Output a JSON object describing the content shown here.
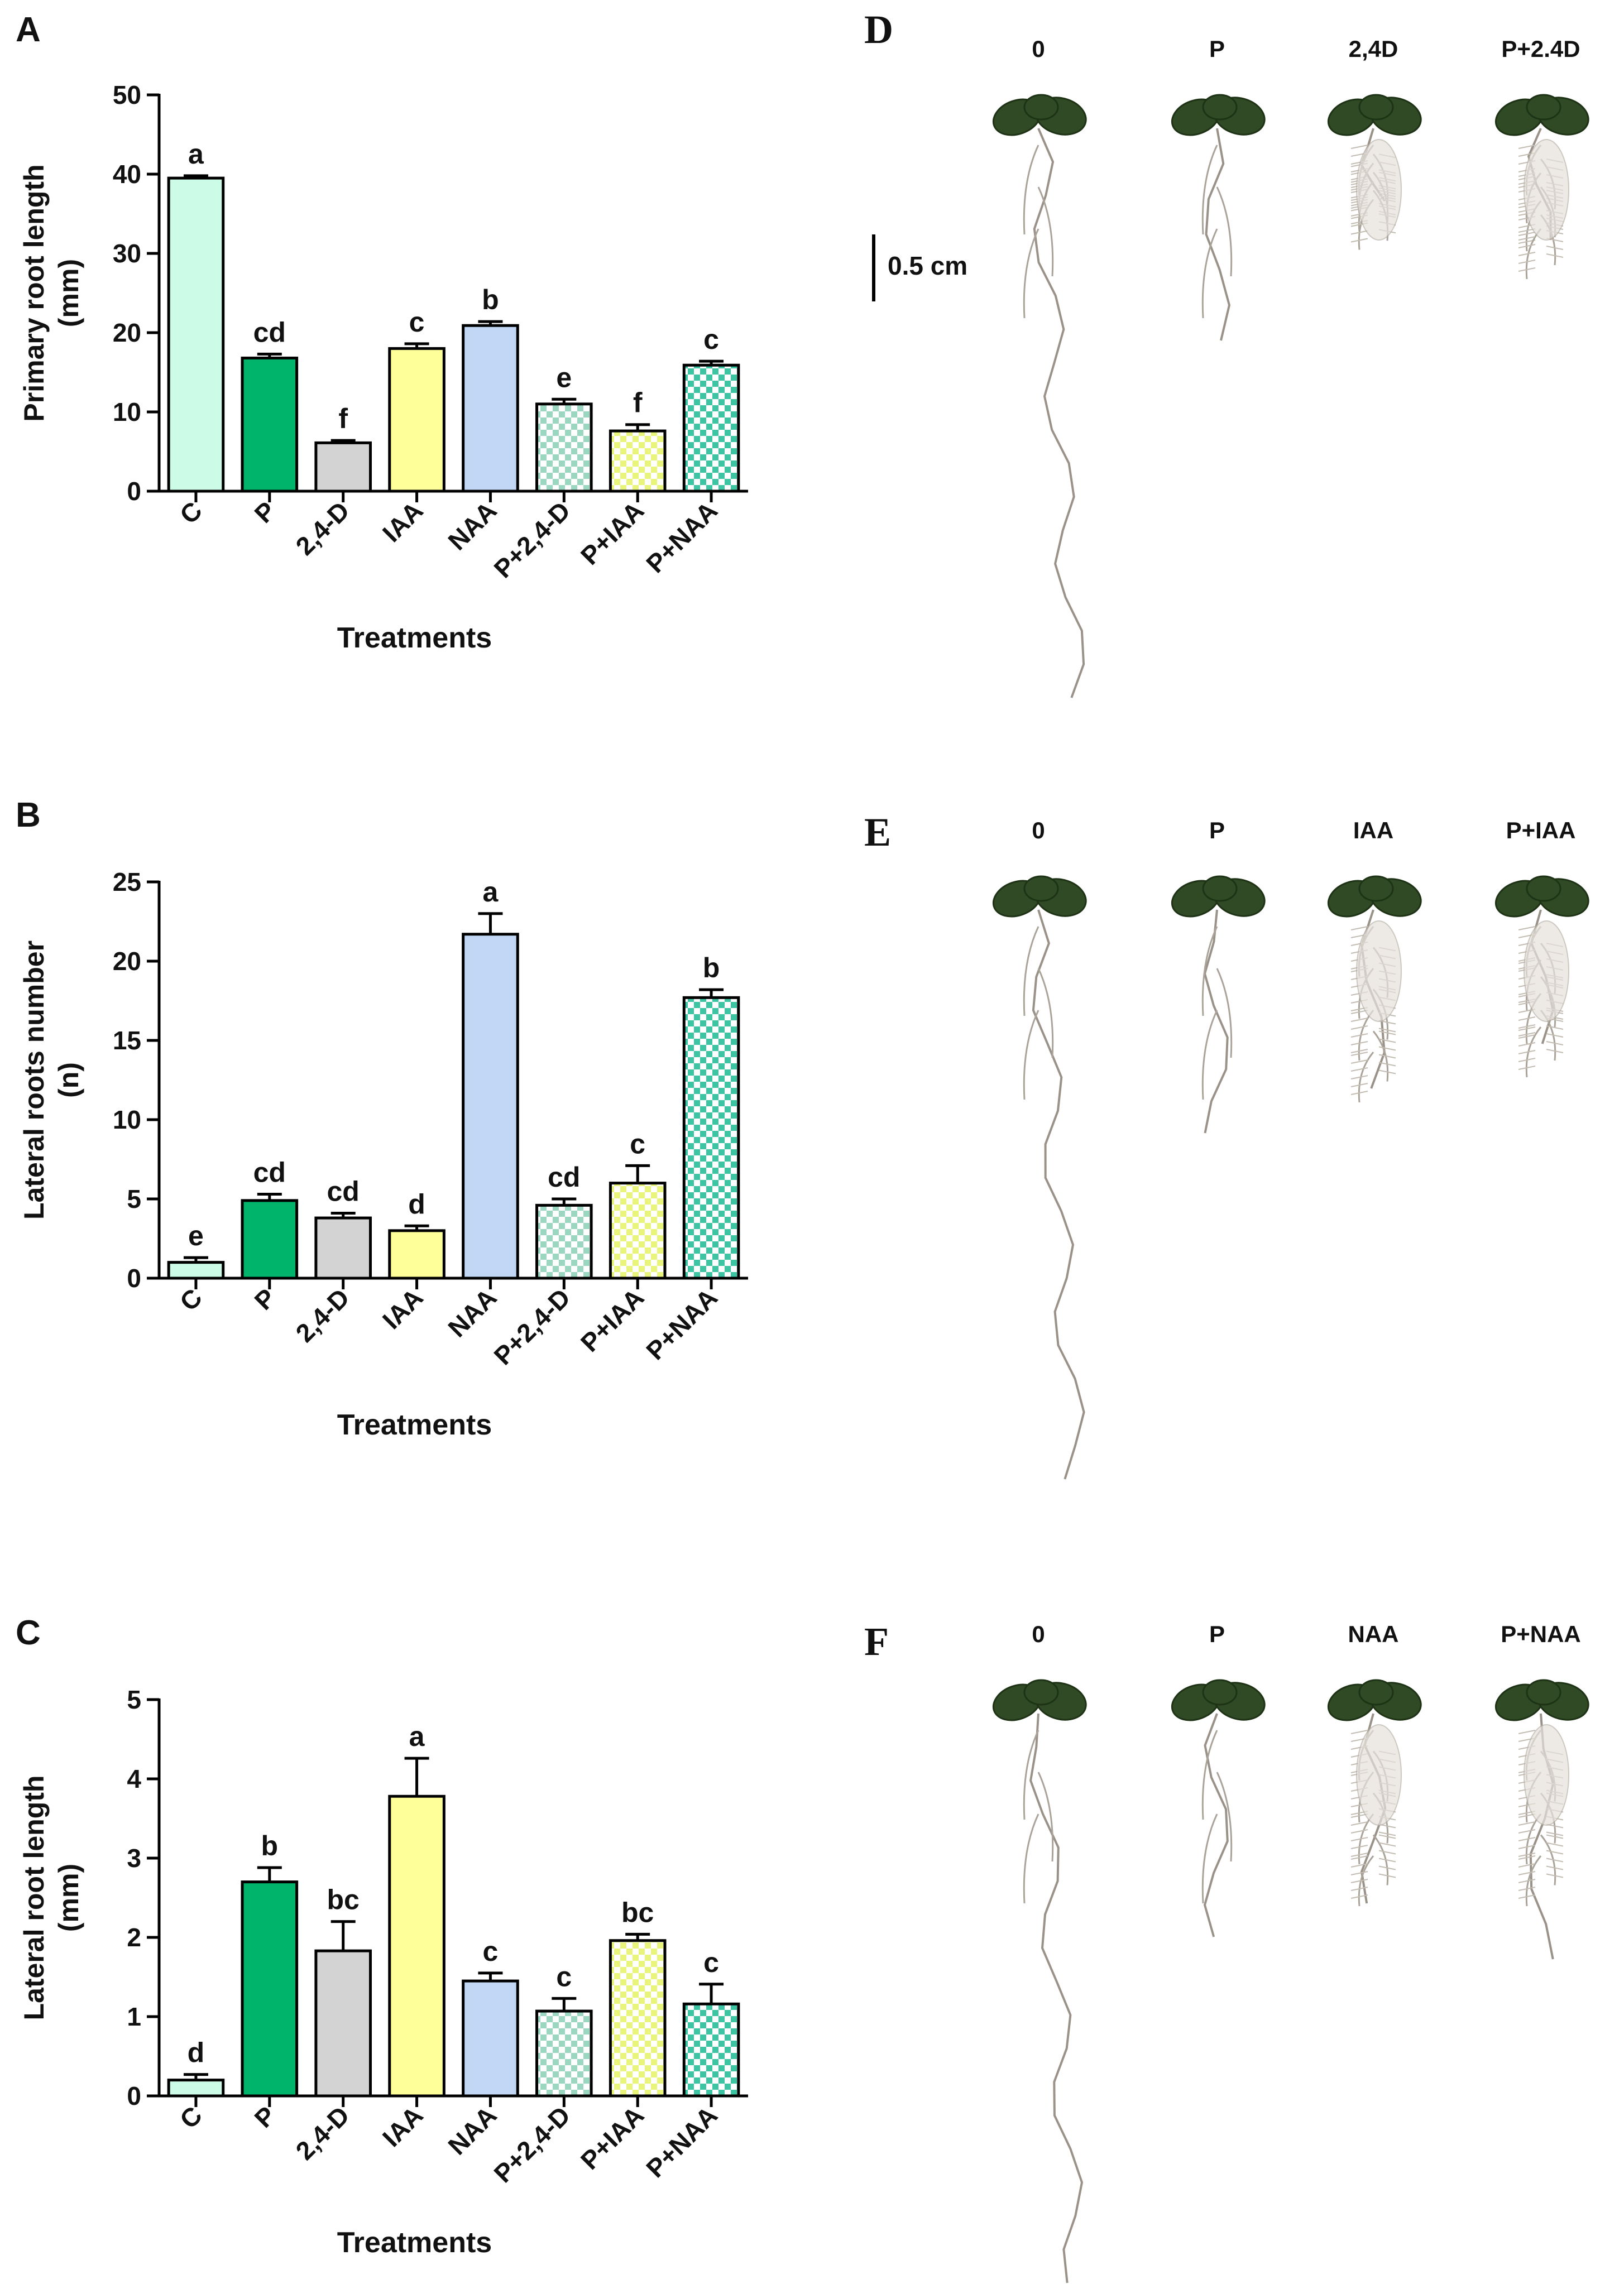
{
  "panels": [
    {
      "id": "A"
    },
    {
      "id": "B"
    },
    {
      "id": "C"
    },
    {
      "id": "D"
    },
    {
      "id": "E"
    },
    {
      "id": "F"
    }
  ],
  "bar_style": {
    "C": {
      "color": "#ccfbe8",
      "checker": false
    },
    "P": {
      "color": "#00b56b",
      "checker": false
    },
    "2,4-D": {
      "color": "#d3d3d3",
      "checker": false
    },
    "IAA": {
      "color": "#ffff99",
      "checker": false
    },
    "NAA": {
      "color": "#c2d7f5",
      "checker": false
    },
    "P+2,4-D": {
      "color": "#9ad6c0",
      "checker": true
    },
    "P+IAA": {
      "color": "#e9f47a",
      "checker": true
    },
    "P+NAA": {
      "color": "#3cc4a3",
      "checker": true
    }
  },
  "chart_data": [
    {
      "panel": "A",
      "type": "bar",
      "categories": [
        "C",
        "P",
        "2,4-D",
        "IAA",
        "NAA",
        "P+2,4-D",
        "P+IAA",
        "P+NAA"
      ],
      "values": [
        39.5,
        16.8,
        6.1,
        18.0,
        20.9,
        11.0,
        7.6,
        15.9
      ],
      "errors": [
        0.3,
        0.5,
        0.3,
        0.6,
        0.5,
        0.6,
        0.8,
        0.5
      ],
      "letters": [
        "a",
        "cd",
        "f",
        "c",
        "b",
        "e",
        "f",
        "c"
      ],
      "ylabel": "Primary root length\n(mm)",
      "xlabel": "Treatments",
      "ylim": [
        0,
        50
      ],
      "yticks": [
        "0",
        "10",
        "20",
        "30",
        "40",
        "50"
      ]
    },
    {
      "panel": "B",
      "type": "bar",
      "categories": [
        "C",
        "P",
        "2,4-D",
        "IAA",
        "NAA",
        "P+2,4-D",
        "P+IAA",
        "P+NAA"
      ],
      "values": [
        1.0,
        4.9,
        3.8,
        3.0,
        21.7,
        4.6,
        6.0,
        17.7
      ],
      "errors": [
        0.3,
        0.4,
        0.3,
        0.3,
        1.3,
        0.4,
        1.1,
        0.5
      ],
      "letters": [
        "e",
        "cd",
        "cd",
        "d",
        "a",
        "cd",
        "c",
        "b"
      ],
      "ylabel": "Lateral roots number\n(n)",
      "xlabel": "Treatments",
      "ylim": [
        0,
        25
      ],
      "yticks": [
        "0",
        "5",
        "10",
        "15",
        "20",
        "25"
      ]
    },
    {
      "panel": "C",
      "type": "bar",
      "categories": [
        "C",
        "P",
        "2,4-D",
        "IAA",
        "NAA",
        "P+2,4-D",
        "P+IAA",
        "P+NAA"
      ],
      "values": [
        0.2,
        2.7,
        1.83,
        3.78,
        1.45,
        1.07,
        1.96,
        1.16
      ],
      "errors": [
        0.07,
        0.18,
        0.37,
        0.48,
        0.1,
        0.16,
        0.08,
        0.25
      ],
      "letters": [
        "d",
        "b",
        "bc",
        "a",
        "c",
        "c",
        "bc",
        "c"
      ],
      "ylabel": "Lateral root length\n(mm)",
      "xlabel": "Treatments",
      "ylim": [
        0,
        5
      ],
      "yticks": [
        "0",
        "1",
        "2",
        "3",
        "4",
        "5"
      ]
    }
  ],
  "photos": [
    {
      "panel": "D",
      "labels": [
        "0",
        "P",
        "2,4D",
        "P+2.4D"
      ],
      "scale_bar": "0.5 cm"
    },
    {
      "panel": "E",
      "labels": [
        "0",
        "P",
        "IAA",
        "P+IAA"
      ]
    },
    {
      "panel": "F",
      "labels": [
        "0",
        "P",
        "NAA",
        "P+NAA"
      ]
    }
  ]
}
